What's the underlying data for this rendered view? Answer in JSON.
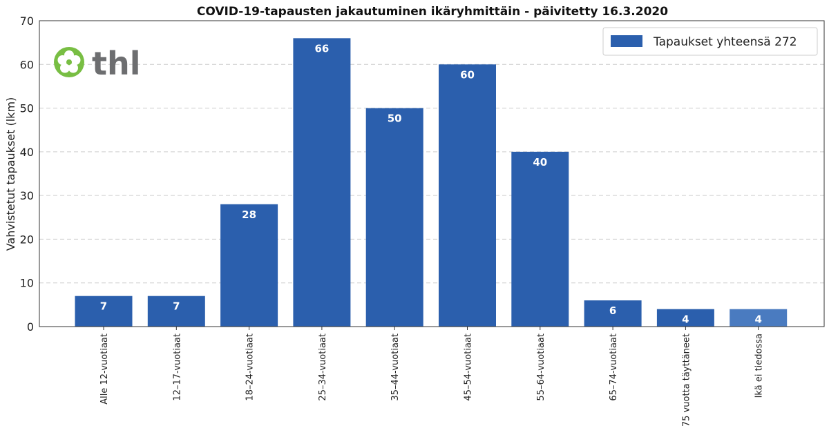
{
  "chart_data": {
    "type": "bar",
    "title": "COVID-19-tapausten jakautuminen ikäryhmittäin - päivitetty 16.3.2020",
    "ylabel": "Vahvistetut tapaukset (lkm)",
    "xlabel": "",
    "ylim": [
      0,
      70
    ],
    "yticks": [
      0,
      10,
      20,
      30,
      40,
      50,
      60,
      70
    ],
    "grid": true,
    "legend_position": "top-right",
    "categories": [
      "Alle 12-vuotiaat",
      "12–17-vuotiaat",
      "18–24-vuotiaat",
      "25–34-vuotiaat",
      "35–44-vuotiaat",
      "45–54-vuotiaat",
      "55–64-vuotiaat",
      "65–74-vuotiaat",
      "75 vuotta täyttäneet",
      "Ikä ei tiedossa"
    ],
    "series": [
      {
        "name": "Tapaukset yhteensä 272",
        "values": [
          7,
          7,
          28,
          66,
          50,
          60,
          40,
          6,
          4,
          4
        ]
      }
    ],
    "colors": {
      "bar": "#2b5fad",
      "bar_unknown": "#4a7bc0",
      "grid": "#cccccc",
      "logo_green": "#78be43",
      "logo_text": "#6d6e70"
    }
  },
  "logo": {
    "text": "thl"
  }
}
